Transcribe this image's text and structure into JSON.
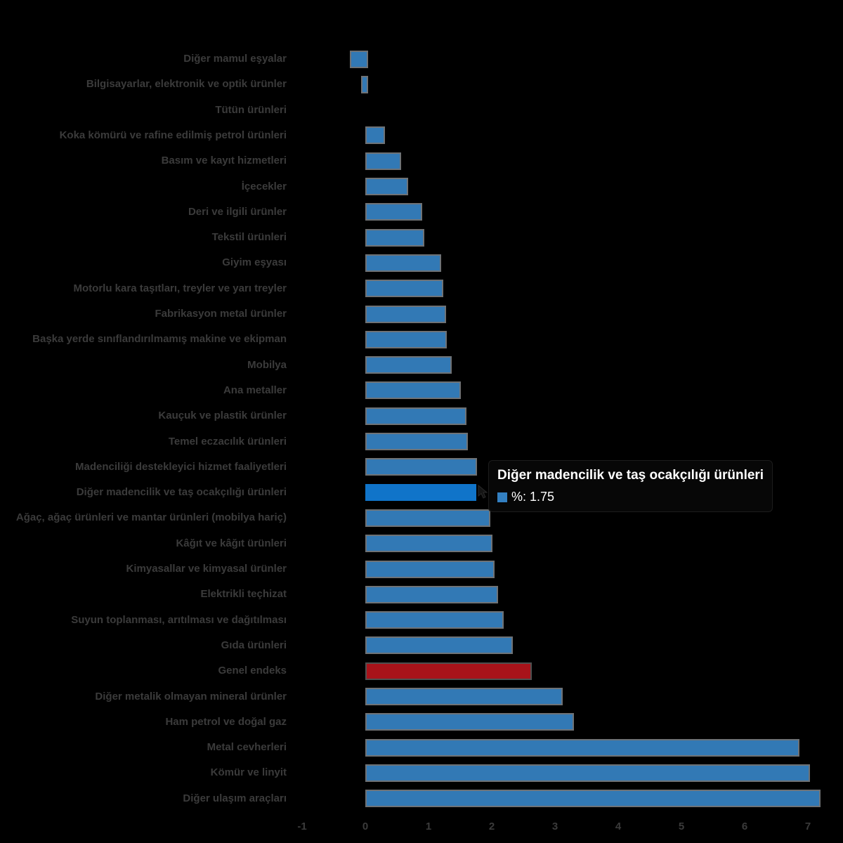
{
  "chart_data": {
    "type": "bar",
    "orientation": "horizontal",
    "title": "",
    "xlabel": "",
    "ylabel": "",
    "xlim": [
      -1,
      7.3
    ],
    "grid": false,
    "series_name": "%",
    "categories": [
      "Diğer mamul eşyalar",
      "Bilgisayarlar, elektronik ve optik ürünler",
      "Tütün ürünleri",
      "Koka kömürü ve rafine edilmiş petrol ürünleri",
      "Basım ve kayıt hizmetleri",
      "İçecekler",
      "Deri ve ilgili ürünler",
      "Tekstil ürünleri",
      "Giyim eşyası",
      "Motorlu kara taşıtları, treyler ve yarı treyler",
      "Fabrikasyon metal ürünler",
      "Başka yerde sınıflandırılmamış makine ve ekipman",
      "Mobilya",
      "Ana metaller",
      "Kauçuk ve plastik ürünler",
      "Temel eczacılık ürünleri",
      "Madenciliği destekleyici hizmet faaliyetleri",
      "Diğer madencilik ve taş ocakçılığı ürünleri",
      "Ağaç, ağaç ürünleri ve mantar ürünleri (mobilya hariç)",
      "Kâğıt ve kâğıt ürünleri",
      "Kimyasallar ve kimyasal ürünler",
      "Elektrikli teçhizat",
      "Suyun toplanması, arıtılması ve dağıtılması",
      "Gıda ürünleri",
      "Genel endeks",
      "Diğer metalik olmayan mineral ürünler",
      "Ham petrol ve doğal gaz",
      "Metal cevherleri",
      "Kömür ve linyit",
      "Diğer ulaşım araçları"
    ],
    "values": [
      -0.25,
      -0.07,
      0.0,
      0.27,
      0.52,
      0.63,
      0.86,
      0.89,
      1.15,
      1.19,
      1.23,
      1.24,
      1.32,
      1.47,
      1.56,
      1.58,
      1.72,
      1.75,
      1.93,
      1.97,
      2.0,
      2.05,
      2.14,
      2.29,
      2.59,
      3.08,
      3.26,
      6.82,
      6.99,
      7.15
    ],
    "highlighted_index": 17,
    "accent_index": 24
  },
  "x_axis": {
    "ticks": [
      -1,
      0,
      1,
      2,
      3,
      4,
      5,
      6,
      7
    ]
  },
  "tooltip": {
    "title": "Diğer madencilik ve taş ocakçılığı ürünleri",
    "value_label": "%: 1.75"
  },
  "colors": {
    "background": "#000000",
    "bar_fill": "#3279b5",
    "bar_stroke": "#6e7276",
    "highlight_fill": "#1074c9",
    "accent_fill": "#a8131a",
    "label_text": "#3b3b3b",
    "tooltip_text": "#ffffff",
    "tooltip_swatch": "#3380c2"
  }
}
